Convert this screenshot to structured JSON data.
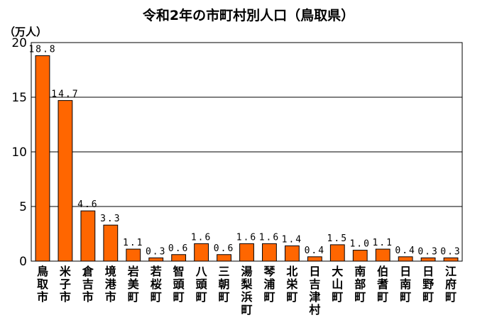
{
  "chart_data": {
    "type": "bar",
    "title": "令和2年の市町村別人口（鳥取県）",
    "unit_label": "（万人）",
    "xlabel": "",
    "ylabel": "",
    "ylim": [
      0,
      20
    ],
    "yticks": [
      0,
      5,
      10,
      15,
      20
    ],
    "grid": true,
    "legend": "none",
    "categories": [
      "鳥取市",
      "米子市",
      "倉吉市",
      "境港市",
      "岩美町",
      "若桜町",
      "智頭町",
      "八頭町",
      "三朝町",
      "湯梨浜町",
      "琴浦町",
      "北栄町",
      "日吉津村",
      "大山町",
      "南部町",
      "伯耆町",
      "日南町",
      "日野町",
      "江府町"
    ],
    "values": [
      18.8,
      14.7,
      4.6,
      3.3,
      1.1,
      0.3,
      0.6,
      1.6,
      0.6,
      1.6,
      1.6,
      1.4,
      0.4,
      1.5,
      1.0,
      1.1,
      0.4,
      0.3,
      0.3
    ],
    "value_labels": [
      "18.8",
      "14.7",
      "4.6",
      "3.3",
      "1.1",
      "0.3",
      "0.6",
      "1.6",
      "0.6",
      "1.6",
      "1.6",
      "1.4",
      "0.4",
      "1.5",
      "1.0",
      "1.1",
      "0.4",
      "0.3",
      "0.3"
    ],
    "colors": {
      "bar": "#ff6600",
      "bar_edge": "#000000",
      "grid": "#000000"
    }
  }
}
